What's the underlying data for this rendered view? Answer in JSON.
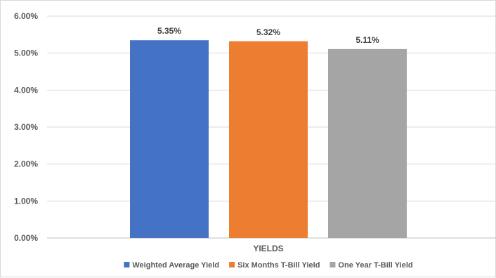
{
  "chart_data": {
    "type": "bar",
    "categories": [
      "YIELDS"
    ],
    "series": [
      {
        "name": "Weighted Average Yield",
        "values": [
          5.35
        ],
        "color": "#4472c4",
        "label": "5.35%"
      },
      {
        "name": "Six Months T-Bill Yield",
        "values": [
          5.32
        ],
        "color": "#ed7d31",
        "label": "5.32%"
      },
      {
        "name": "One Year T-Bill Yield",
        "values": [
          5.11
        ],
        "color": "#a5a5a5",
        "label": "5.11%"
      }
    ],
    "yticks": [
      "0.00%",
      "1.00%",
      "2.00%",
      "3.00%",
      "4.00%",
      "5.00%",
      "6.00%"
    ],
    "ylim": [
      0,
      6
    ],
    "grid": true,
    "legend_position": "bottom",
    "title": "",
    "xlabel": "",
    "ylabel": ""
  }
}
